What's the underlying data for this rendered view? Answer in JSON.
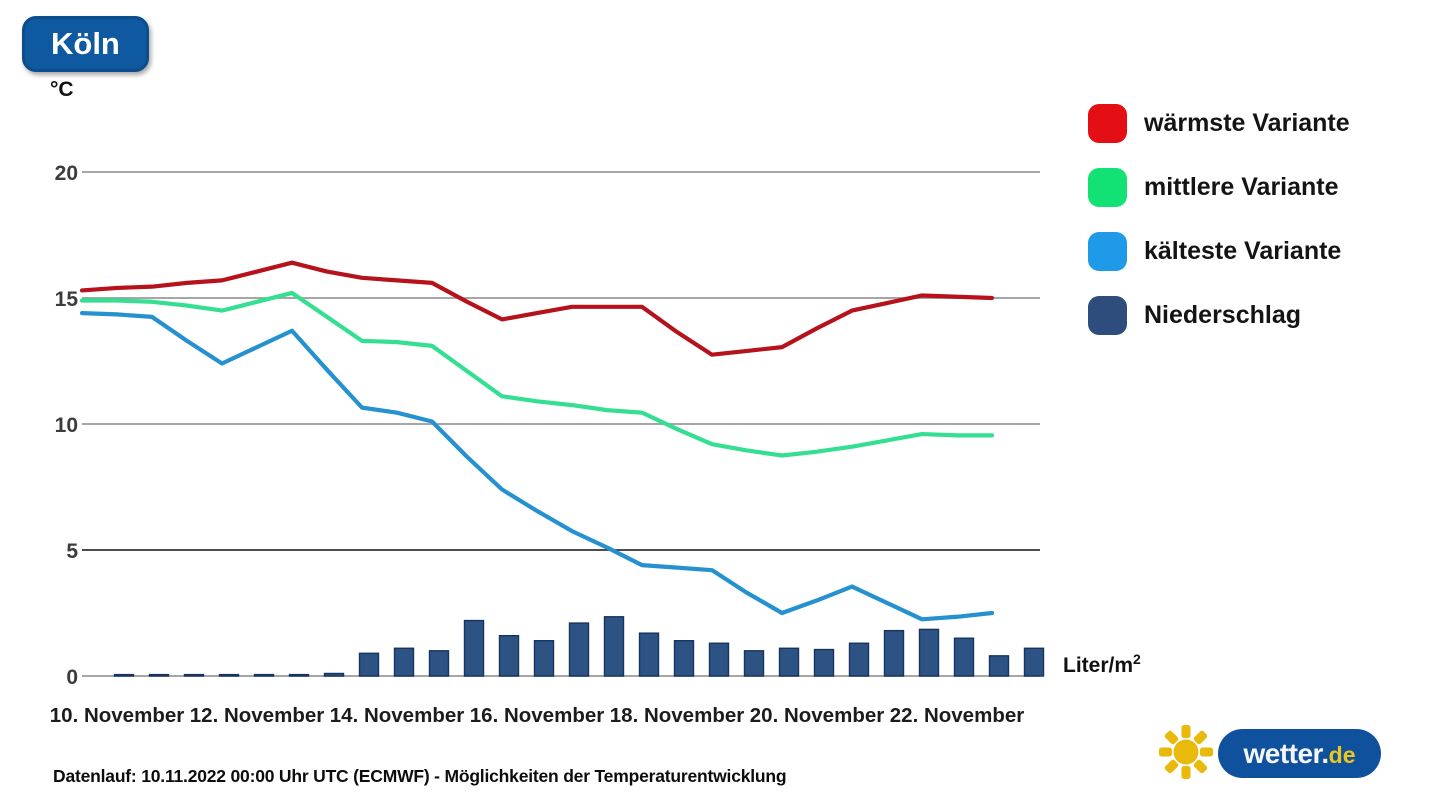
{
  "title": {
    "label": "Köln"
  },
  "legend": {
    "items": [
      {
        "label": "wärmste Variante",
        "color": "#e40f14"
      },
      {
        "label": "mittlere Variante",
        "color": "#12e273"
      },
      {
        "label": "kälteste Variante",
        "color": "#1f9ae8"
      },
      {
        "label": "Niederschlag",
        "color": "#2e4d7d"
      }
    ]
  },
  "footer": {
    "caption": "Datenlauf: 10.11.2022 00:00 Uhr UTC (ECMWF) - Möglichkeiten der Temperaturentwicklung"
  },
  "logo": {
    "brand": "wetter.",
    "tld": "de"
  },
  "colors": {
    "title_bg": "#0e599f",
    "grid": "#999999",
    "grid_dark": "#333333",
    "y_tick_text": "#3c3c3c",
    "x_tick_text": "#1c1c1c",
    "warm_line": "#b5121b",
    "mid_line": "#35df92",
    "cold_line": "#2591cf",
    "precip_fill": "#2d5384",
    "precip_border": "#16345e",
    "logo_blue": "#10519e",
    "sun_yellow": "#e9ba0c"
  },
  "chart_data": {
    "type": "line+bar",
    "title": "Köln",
    "ylabel": "°C",
    "bar_unit": "Liter/m",
    "bar_unit_sup": "2",
    "y_ticks": [
      0,
      5,
      10,
      15,
      20
    ],
    "ylim": [
      0,
      21.5
    ],
    "x_range_days_november": [
      10,
      23.6
    ],
    "x_ticks": [
      {
        "day": 10.5,
        "label": "10. November"
      },
      {
        "day": 12.5,
        "label": "12. November"
      },
      {
        "day": 14.5,
        "label": "14. November"
      },
      {
        "day": 16.5,
        "label": "16. November"
      },
      {
        "day": 18.5,
        "label": "18. November"
      },
      {
        "day": 20.5,
        "label": "20. November"
      },
      {
        "day": 22.5,
        "label": "22. November"
      }
    ],
    "x_days": [
      10,
      10.5,
      11,
      11.5,
      12,
      12.5,
      13,
      13.5,
      14,
      14.5,
      15,
      15.5,
      16,
      16.5,
      17,
      17.5,
      18,
      18.5,
      19,
      19.5,
      20,
      20.5,
      21,
      21.5,
      22,
      22.5,
      23
    ],
    "series": [
      {
        "name": "wärmste Variante",
        "color": "#b5121b",
        "values": [
          15.3,
          15.4,
          15.45,
          15.6,
          15.7,
          16.05,
          16.4,
          16.05,
          15.8,
          15.7,
          15.6,
          14.85,
          14.15,
          14.4,
          14.65,
          14.65,
          14.65,
          13.65,
          12.75,
          12.9,
          13.05,
          13.8,
          14.5,
          14.8,
          15.1,
          15.05,
          15.0
        ]
      },
      {
        "name": "mittlere Variante",
        "color": "#35df92",
        "values": [
          14.9,
          14.9,
          14.85,
          14.7,
          14.5,
          14.85,
          15.2,
          14.25,
          13.3,
          13.25,
          13.1,
          12.1,
          11.1,
          10.9,
          10.75,
          10.55,
          10.45,
          9.8,
          9.2,
          8.95,
          8.75,
          8.9,
          9.1,
          9.35,
          9.6,
          9.55,
          9.55
        ]
      },
      {
        "name": "kälteste Variante",
        "color": "#2591cf",
        "values": [
          14.4,
          14.35,
          14.25,
          13.3,
          12.4,
          13.05,
          13.7,
          12.15,
          10.65,
          10.45,
          10.1,
          8.7,
          7.4,
          6.55,
          5.75,
          5.1,
          4.4,
          4.3,
          4.2,
          3.3,
          2.5,
          3.0,
          3.55,
          2.9,
          2.25,
          2.35,
          2.5
        ]
      }
    ],
    "bars": {
      "name": "Niederschlag",
      "unit": "Liter/m²",
      "color": "#2d5384",
      "x_days": [
        10.6,
        11.1,
        11.6,
        12.1,
        12.6,
        13.1,
        13.6,
        14.1,
        14.6,
        15.1,
        15.6,
        16.1,
        16.6,
        17.1,
        17.6,
        18.1,
        18.6,
        19.1,
        19.6,
        20.1,
        20.6,
        21.1,
        21.6,
        22.1,
        22.6,
        23.1,
        23.6
      ],
      "values": [
        0.05,
        0.05,
        0.05,
        0.05,
        0.05,
        0.05,
        0.1,
        0.9,
        1.1,
        1.0,
        2.2,
        1.6,
        1.4,
        2.1,
        2.35,
        1.7,
        1.4,
        1.3,
        1.0,
        1.1,
        1.05,
        1.3,
        1.8,
        1.85,
        1.5,
        0.8,
        1.1
      ]
    }
  }
}
